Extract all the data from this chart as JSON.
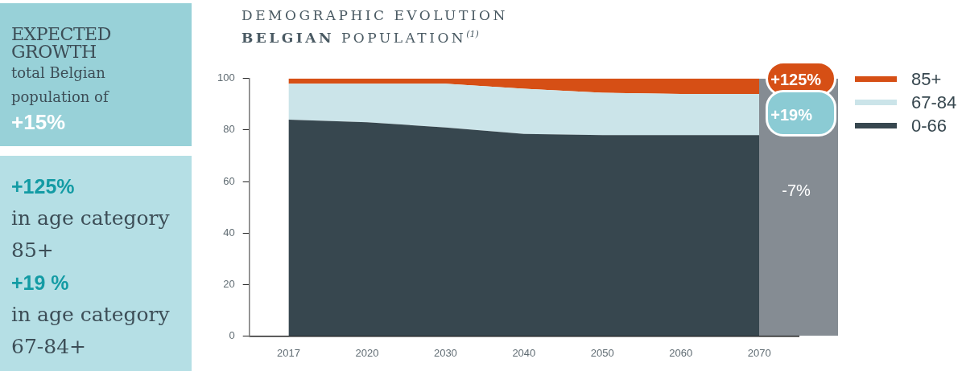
{
  "chart_data": [
    {
      "type": "other",
      "title": "EXPECTED GROWTH",
      "annotations": [
        "total Belgian population of",
        "+15%"
      ]
    },
    {
      "type": "other",
      "annotations": [
        "+125%",
        "in age category 85+",
        "+19 %",
        "in age category 67-84+"
      ]
    },
    {
      "type": "area",
      "title": "DEMOGRAPHIC EVOLUTION",
      "subtitle": "BELGIAN POPULATION$^{(1)}$",
      "stacked": true,
      "legend": "right",
      "categories": [
        "2017",
        "2020",
        "2030",
        "2040",
        "2050",
        "2060",
        "2070"
      ],
      "series": [
        {
          "name": "0-66",
          "color": "#37474f",
          "values": [
            84,
            83,
            81,
            78.5,
            78,
            78,
            78
          ]
        },
        {
          "name": "67-84",
          "color": "#cbe4e9",
          "values": [
            14,
            15,
            17,
            17.5,
            16.5,
            16,
            16
          ]
        },
        {
          "name": "85+",
          "color": "#d64f15",
          "values": [
            2,
            2,
            2,
            4,
            5.5,
            6,
            6
          ]
        }
      ],
      "ylim": [
        0,
        100
      ],
      "yticks": [
        0,
        20,
        40,
        60,
        80,
        100
      ],
      "grid": false,
      "annotations": [
        "+125%",
        "+19%",
        "-7%"
      ]
    }
  ]
}
